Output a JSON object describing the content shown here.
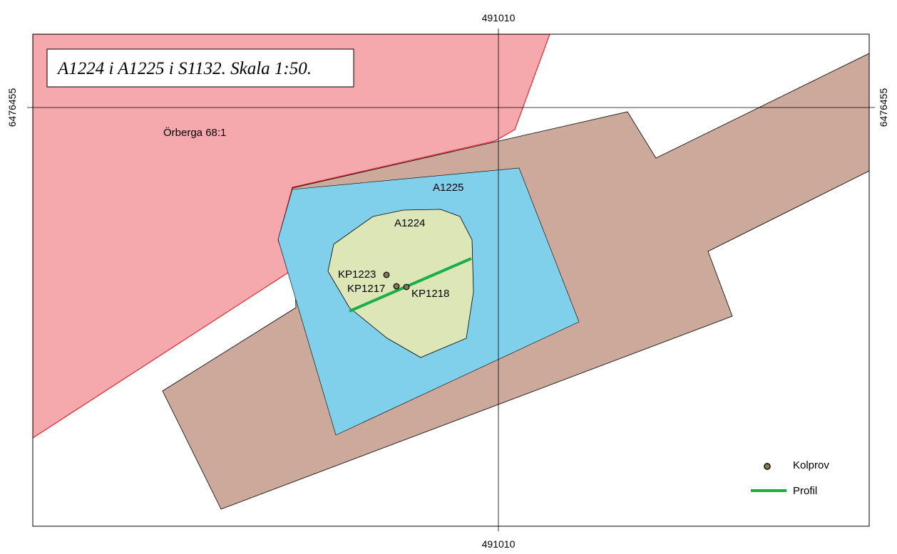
{
  "map": {
    "title": "A1224 i A1225 i S1132. Skala 1:50.",
    "grid": {
      "easting_label": "491010",
      "northing_label": "6476455"
    },
    "features": {
      "property_label": "Örberga 68:1",
      "outer_feature_label": "A1225",
      "inner_feature_label": "A1224"
    },
    "samples": [
      {
        "id": "KP1223"
      },
      {
        "id": "KP1217"
      },
      {
        "id": "KP1218"
      }
    ],
    "legend": {
      "sample_label": "Kolprov",
      "profile_label": "Profil"
    },
    "colors": {
      "property_fill": "#f5a9ad",
      "property_stroke": "#e8262b",
      "trench_fill": "#cca99a",
      "outer_feature_fill": "#80d0ec",
      "inner_feature_fill": "#dde6b6",
      "profile_line": "#1aae4a",
      "sample_fill": "#8a7a4a"
    },
    "icons": {
      "sample": "sample-dot-icon",
      "profile": "profile-line-icon"
    }
  }
}
